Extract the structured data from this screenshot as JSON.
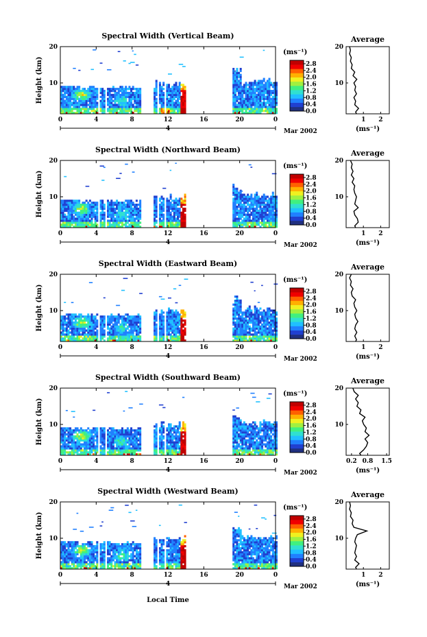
{
  "chart_data": {
    "type": "heatmap",
    "x_label": "Local Time",
    "x_ticks": [
      "0",
      "4",
      "8",
      "12",
      "16",
      "20",
      "0"
    ],
    "x_range_hours": [
      0,
      24
    ],
    "date_label": "Mar 2002",
    "day_marker": "4",
    "y_label": "Height (km)",
    "y_ticks": [
      "10",
      "20"
    ],
    "y_range_km": [
      1.5,
      20
    ],
    "colorbar_unit": "(ms⁻¹)",
    "colorbar_ticks": [
      "2.8",
      "2.4",
      "2.0",
      "1.6",
      "1.2",
      "0.8",
      "0.4",
      "0.0"
    ],
    "colorbar_range": [
      0,
      3.0
    ],
    "colors": [
      "#203080",
      "#2040d0",
      "#2080ff",
      "#20c0ff",
      "#30e0d0",
      "#40f080",
      "#a0f040",
      "#f0f020",
      "#ffb000",
      "#ff6000",
      "#f00000",
      "#c00000"
    ],
    "data_gaps_hours": [
      [
        4.2,
        4.4
      ],
      [
        5.0,
        5.2
      ],
      [
        8.9,
        10.2
      ],
      [
        10.6,
        10.8
      ],
      [
        11.5,
        11.7
      ],
      [
        13.8,
        19.0
      ]
    ],
    "panels": [
      {
        "title": "Spectral Width (Vertical Beam)",
        "avg_title": "Average",
        "avg_xlabel": "(ms⁻¹)",
        "avg_xticks": [
          "1",
          "2"
        ],
        "avg_xrange": [
          0,
          2.5
        ],
        "avg_profile": {
          "height_km": [
            1.5,
            2,
            3,
            4,
            5,
            6,
            7,
            8,
            9,
            10,
            11,
            12,
            13,
            14,
            15,
            16,
            17,
            18,
            19,
            20
          ],
          "width_ms": [
            0.6,
            0.55,
            0.72,
            0.5,
            0.55,
            0.45,
            0.6,
            0.5,
            0.55,
            0.45,
            0.62,
            0.4,
            0.5,
            0.3,
            0.35,
            0.25,
            0.3,
            0.2,
            0.25,
            0.2
          ]
        }
      },
      {
        "title": "Spectral Width (Northward Beam)",
        "avg_title": "Average",
        "avg_xlabel": "(ms⁻¹)",
        "avg_xticks": [
          "1",
          "2"
        ],
        "avg_xrange": [
          0,
          2.5
        ],
        "avg_profile": {
          "height_km": [
            1.5,
            2,
            3,
            4,
            5,
            6,
            7,
            8,
            9,
            10,
            11,
            12,
            13,
            14,
            15,
            16,
            17,
            18,
            19,
            20
          ],
          "width_ms": [
            0.55,
            0.5,
            0.7,
            0.65,
            0.5,
            0.45,
            0.7,
            0.5,
            0.55,
            0.6,
            0.5,
            0.45,
            0.5,
            0.35,
            0.45,
            0.3,
            0.4,
            0.3,
            0.35,
            0.25
          ]
        }
      },
      {
        "title": "Spectral Width (Eastward Beam)",
        "avg_title": "Average",
        "avg_xlabel": "(ms⁻¹)",
        "avg_xticks": [
          "1",
          "2"
        ],
        "avg_xrange": [
          0,
          2.5
        ],
        "avg_profile": {
          "height_km": [
            1.5,
            2,
            3,
            4,
            5,
            6,
            7,
            8,
            9,
            10,
            11,
            12,
            13,
            14,
            15,
            16,
            17,
            18,
            19,
            20
          ],
          "width_ms": [
            0.55,
            0.6,
            0.5,
            0.62,
            0.5,
            0.55,
            0.68,
            0.55,
            0.5,
            0.62,
            0.5,
            0.45,
            0.55,
            0.35,
            0.3,
            0.4,
            0.25,
            0.3,
            0.2,
            0.3
          ]
        }
      },
      {
        "title": "Spectral Width (Southward Beam)",
        "avg_title": "Average",
        "avg_xlabel": "(ms⁻¹)",
        "avg_xticks": [
          "0.2",
          "0.8",
          "1.5"
        ],
        "avg_xrange": [
          0,
          1.6
        ],
        "avg_profile": {
          "height_km": [
            1.5,
            2,
            3,
            4,
            5,
            6,
            7,
            8,
            9,
            10,
            11,
            12,
            13,
            14,
            15,
            16,
            17,
            18,
            19,
            20
          ],
          "width_ms": [
            0.55,
            0.5,
            0.65,
            0.75,
            0.8,
            0.7,
            0.85,
            0.7,
            0.75,
            0.65,
            0.6,
            0.7,
            0.5,
            0.55,
            0.4,
            0.45,
            0.35,
            0.45,
            0.3,
            0.25
          ]
        }
      },
      {
        "title": "Spectral Width (Westward Beam)",
        "avg_title": "Average",
        "avg_xlabel": "(ms⁻¹)",
        "avg_xticks": [
          "1",
          "2"
        ],
        "avg_xrange": [
          0,
          2.5
        ],
        "avg_profile": {
          "height_km": [
            1.5,
            2,
            3,
            4,
            5,
            6,
            7,
            8,
            9,
            10,
            11,
            12,
            13,
            14,
            15,
            16,
            17,
            18,
            19,
            20
          ],
          "width_ms": [
            0.6,
            0.55,
            0.75,
            0.5,
            0.6,
            0.5,
            0.55,
            0.6,
            0.5,
            0.55,
            0.65,
            1.2,
            0.45,
            0.35,
            0.4,
            0.25,
            0.3,
            0.2,
            0.25,
            0.2
          ]
        }
      }
    ]
  }
}
